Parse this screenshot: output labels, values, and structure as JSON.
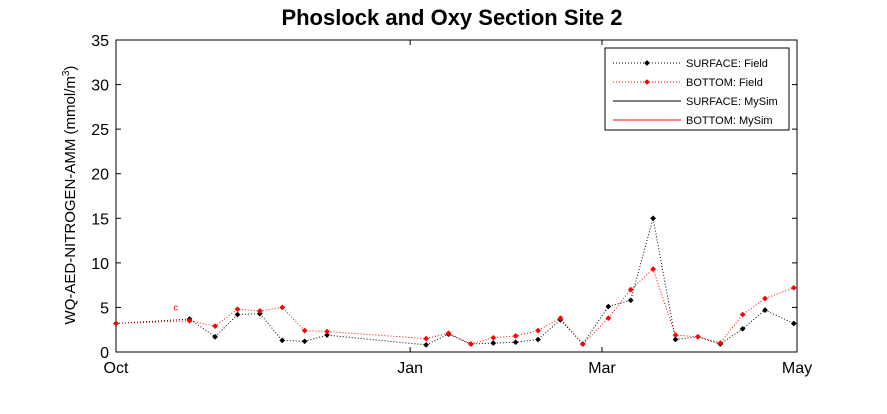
{
  "chart_data": {
    "type": "line",
    "title": "Phoslock and Oxy Section Site 2",
    "ylabel": "WQ-AED-NITROGEN-AMM (mmol/m",
    "ylabel_superscript": "3",
    "ylabel_close": ")",
    "xlabel": "",
    "ylim": [
      0,
      35
    ],
    "yticks": [
      0,
      5,
      10,
      15,
      20,
      25,
      30,
      35
    ],
    "x_axis": {
      "type": "date",
      "min": "2015-10-01",
      "max": "2016-05-01"
    },
    "xticks": [
      {
        "date": "2015-10-01",
        "label": "Oct"
      },
      {
        "date": "2016-01-01",
        "label": "Jan"
      },
      {
        "date": "2016-03-01",
        "label": "Mar"
      },
      {
        "date": "2016-05-01",
        "label": "May"
      }
    ],
    "grid": false,
    "legend_position": "top-right",
    "annotation": {
      "text": "c",
      "date": "2015-10-19",
      "y": 5.0,
      "color": "#ff0000"
    },
    "series": [
      {
        "name": "SURFACE: Field",
        "color": "#000000",
        "style": "dotted-markers",
        "points": [
          {
            "x": "2015-10-01",
            "y": 3.2
          },
          {
            "x": "2015-10-24",
            "y": 3.7
          },
          {
            "x": "2015-11-01",
            "y": 1.7
          },
          {
            "x": "2015-11-08",
            "y": 4.2
          },
          {
            "x": "2015-11-15",
            "y": 4.3
          },
          {
            "x": "2015-11-22",
            "y": 1.3
          },
          {
            "x": "2015-11-29",
            "y": 1.2
          },
          {
            "x": "2015-12-06",
            "y": 1.9
          },
          {
            "x": "2016-01-06",
            "y": 0.8
          },
          {
            "x": "2016-01-13",
            "y": 2.0
          },
          {
            "x": "2016-01-20",
            "y": 0.9
          },
          {
            "x": "2016-01-27",
            "y": 1.0
          },
          {
            "x": "2016-02-03",
            "y": 1.1
          },
          {
            "x": "2016-02-10",
            "y": 1.4
          },
          {
            "x": "2016-02-17",
            "y": 3.6
          },
          {
            "x": "2016-02-24",
            "y": 0.9
          },
          {
            "x": "2016-03-03",
            "y": 5.1
          },
          {
            "x": "2016-03-10",
            "y": 5.8
          },
          {
            "x": "2016-03-17",
            "y": 15.0
          },
          {
            "x": "2016-03-24",
            "y": 1.4
          },
          {
            "x": "2016-03-31",
            "y": 1.7
          },
          {
            "x": "2016-04-07",
            "y": 0.9
          },
          {
            "x": "2016-04-14",
            "y": 2.6
          },
          {
            "x": "2016-04-21",
            "y": 4.7
          },
          {
            "x": "2016-04-30",
            "y": 3.2
          }
        ]
      },
      {
        "name": "BOTTOM: Field",
        "color": "#ff0000",
        "style": "dotted-markers",
        "points": [
          {
            "x": "2015-10-01",
            "y": 3.2
          },
          {
            "x": "2015-10-24",
            "y": 3.5
          },
          {
            "x": "2015-11-01",
            "y": 2.9
          },
          {
            "x": "2015-11-08",
            "y": 4.8
          },
          {
            "x": "2015-11-15",
            "y": 4.6
          },
          {
            "x": "2015-11-22",
            "y": 5.0
          },
          {
            "x": "2015-11-29",
            "y": 2.4
          },
          {
            "x": "2015-12-06",
            "y": 2.3
          },
          {
            "x": "2016-01-06",
            "y": 1.5
          },
          {
            "x": "2016-01-13",
            "y": 2.1
          },
          {
            "x": "2016-01-20",
            "y": 0.9
          },
          {
            "x": "2016-01-27",
            "y": 1.6
          },
          {
            "x": "2016-02-03",
            "y": 1.8
          },
          {
            "x": "2016-02-10",
            "y": 2.4
          },
          {
            "x": "2016-02-17",
            "y": 3.8
          },
          {
            "x": "2016-02-24",
            "y": 0.9
          },
          {
            "x": "2016-03-03",
            "y": 3.8
          },
          {
            "x": "2016-03-10",
            "y": 7.0
          },
          {
            "x": "2016-03-17",
            "y": 9.3
          },
          {
            "x": "2016-03-24",
            "y": 1.9
          },
          {
            "x": "2016-03-31",
            "y": 1.7
          },
          {
            "x": "2016-04-07",
            "y": 1.0
          },
          {
            "x": "2016-04-14",
            "y": 4.2
          },
          {
            "x": "2016-04-21",
            "y": 6.0
          },
          {
            "x": "2016-04-30",
            "y": 7.2
          }
        ]
      },
      {
        "name": "SURFACE: MySim",
        "color": "#000000",
        "style": "solid",
        "points": []
      },
      {
        "name": "BOTTOM: MySim",
        "color": "#ff0000",
        "style": "solid",
        "points": []
      }
    ]
  }
}
